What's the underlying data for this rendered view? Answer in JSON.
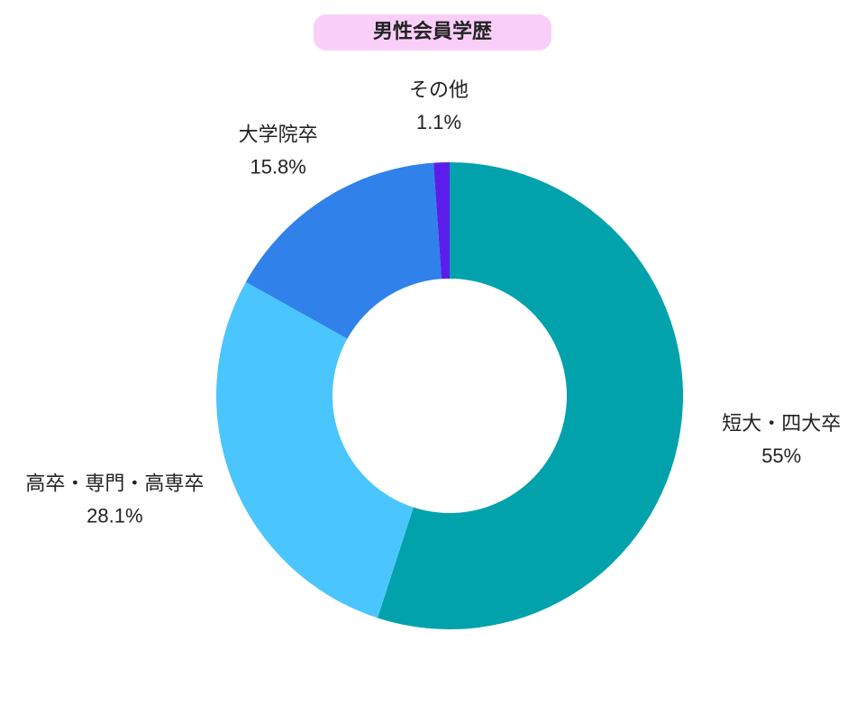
{
  "chart_data": {
    "type": "donut",
    "title": "男性会員学歴",
    "categories": [
      "短大・四大卒",
      "高卒・専門・高専卒",
      "大学院卒",
      "その他"
    ],
    "values": [
      55,
      28.1,
      15.8,
      1.1
    ],
    "value_labels": [
      "55%",
      "28.1%",
      "15.8%",
      "1.1%"
    ],
    "colors": [
      "#02a2ad",
      "#4bc5fd",
      "#3181ea",
      "#5b1eea"
    ]
  }
}
